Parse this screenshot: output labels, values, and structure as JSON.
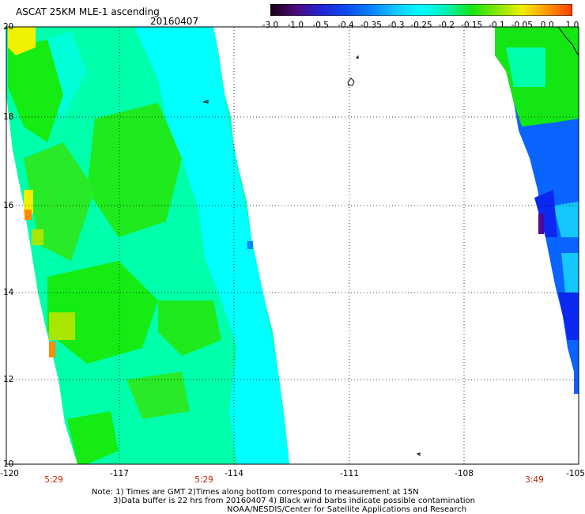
{
  "header": {
    "title": "ASCAT 25KM MLE-1 ascending",
    "date": "20160407"
  },
  "colorbar": {
    "labels": [
      "-3.0",
      "-1.0",
      "-0.5",
      "-0.4",
      "-0.35",
      "-0.3",
      "-0.25",
      "-0.2",
      "-0.15",
      "-0.1",
      "-0.05",
      "0.0",
      "1.0"
    ],
    "colors": [
      "#1a0016",
      "#4b0a7a",
      "#2323d2",
      "#0a4bf0",
      "#0a82ff",
      "#14c8ff",
      "#00ffff",
      "#00f0b4",
      "#14e614",
      "#82e600",
      "#f0f000",
      "#ff9600",
      "#ff3c00"
    ]
  },
  "map": {
    "lat_labels": [
      "20",
      "18",
      "16",
      "14",
      "12",
      "10"
    ],
    "lon_labels": [
      "-120",
      "-117",
      "-114",
      "-111",
      "-108",
      "-105"
    ],
    "time_labels": [
      "5:29",
      "5:29",
      "3:49"
    ],
    "swath_colors": {
      "left_base": "#00ffaa",
      "left_cyan": "#00ffff",
      "left_green": "#14ec14",
      "left_yellow": "#f0f000",
      "left_orange": "#ff8c00",
      "right_green": "#14e614",
      "right_blue": "#0a64ff",
      "right_deep": "#0a28f0",
      "right_purple": "#4b0a9a",
      "right_cyan": "#14c8ff"
    }
  },
  "footer": {
    "note_line1": "Note: 1) Times are GMT 2)Times along bottom correspond to measurement at 15N",
    "note_line2": "3)Data buffer is 22 hrs from 20160407 4) Black wind barbs indicate possible contamination",
    "credit": "NOAA/NESDIS/Center for Satellite Applications and Research"
  }
}
